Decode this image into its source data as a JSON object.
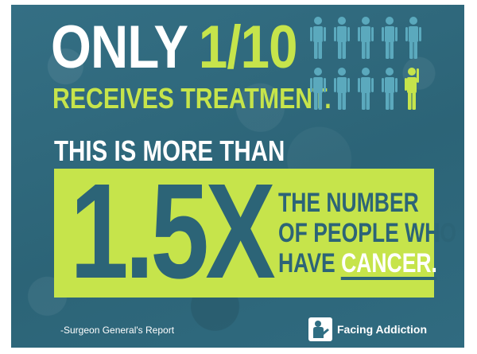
{
  "headline": {
    "only": "ONLY",
    "ratio": "1/10",
    "subline": "RECEIVES TREATMENT."
  },
  "pictogram": {
    "icon": "person-icon",
    "total": 10,
    "highlighted": 1,
    "colors": {
      "default": "#5ba9bd",
      "highlight": "#c6e44b"
    }
  },
  "comparison": {
    "lead": "THIS IS MORE THAN",
    "multiplier": "1.5X",
    "line1": "THE NUMBER",
    "line2": "OF PEOPLE WHO",
    "line3_prefix": "HAVE",
    "line3_highlight": "CANCER."
  },
  "footer": {
    "source": "-Surgeon General's Report",
    "brand": "Facing Addiction",
    "brand_icon": "facing-addiction-logo-icon"
  },
  "colors": {
    "background": "#2f6e83",
    "accent": "#c6e44b",
    "text_dark": "#2c6477",
    "text_light": "#ffffff"
  }
}
